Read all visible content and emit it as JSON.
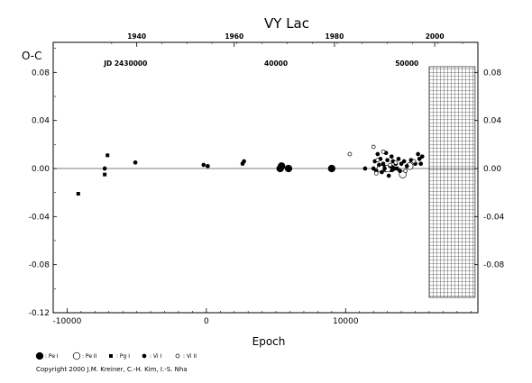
{
  "chart_data": {
    "type": "scatter",
    "title": "VY  Lac",
    "ylabel": "O-C",
    "xlabel": "Epoch",
    "xlim": [
      -11000,
      19500
    ],
    "ylim": [
      -0.12,
      0.105
    ],
    "y_ticks": [
      "0.08",
      "0.04",
      "0.00",
      "-0.04",
      "-0.08",
      "-0.12"
    ],
    "y_ticks_right": [
      "0.08",
      "0.04",
      "0.00",
      "-0.04",
      "-0.08"
    ],
    "x_ticks": [
      "-10000",
      "0",
      "10000"
    ],
    "top_axis": {
      "years": [
        "1940",
        "1960",
        "1980",
        "2000"
      ],
      "jd_labels": [
        "JD 2430000",
        "40000",
        "50000"
      ]
    },
    "grid": false,
    "hatched_region": [
      16000,
      19300
    ],
    "series": [
      {
        "name": ": Pe I",
        "marker": "filled-circle-large",
        "points": [
          [
            5300,
            0.0
          ],
          [
            5400,
            0.002
          ],
          [
            5900,
            0.0
          ],
          [
            9000,
            0.0
          ],
          [
            12900,
            0.0
          ],
          [
            13300,
            0.0
          ]
        ]
      },
      {
        "name": ": Pe II",
        "marker": "open-circle-large",
        "points": [
          [
            12500,
            0.0
          ],
          [
            13000,
            0.0
          ],
          [
            14100,
            -0.005
          ],
          [
            14600,
            0.002
          ]
        ]
      },
      {
        "name": ": Pg I",
        "marker": "filled-square",
        "points": [
          [
            -9200,
            -0.021
          ],
          [
            -7300,
            -0.005
          ],
          [
            -7100,
            0.011
          ]
        ]
      },
      {
        "name": ": Vi I",
        "marker": "filled-circle-small",
        "points": [
          [
            -7300,
            0.0
          ],
          [
            -5100,
            0.005
          ],
          [
            -200,
            0.003
          ],
          [
            100,
            0.002
          ],
          [
            2600,
            0.004
          ],
          [
            2700,
            0.006
          ],
          [
            11400,
            0.0
          ],
          [
            12000,
            0.0
          ],
          [
            12100,
            0.006
          ],
          [
            12200,
            -0.002
          ],
          [
            12300,
            0.012
          ],
          [
            12400,
            0.003
          ],
          [
            12500,
            0.008
          ],
          [
            12600,
            -0.003
          ],
          [
            12700,
            0.004
          ],
          [
            12800,
            0.0
          ],
          [
            12900,
            0.013
          ],
          [
            13000,
            0.007
          ],
          [
            13100,
            -0.006
          ],
          [
            13200,
            0.002
          ],
          [
            13300,
            0.01
          ],
          [
            13400,
            0.006
          ],
          [
            13500,
            0.0
          ],
          [
            13600,
            0.004
          ],
          [
            13700,
            0.0
          ],
          [
            13800,
            0.008
          ],
          [
            13900,
            -0.002
          ],
          [
            14000,
            0.004
          ],
          [
            14200,
            0.006
          ],
          [
            14400,
            0.002
          ],
          [
            14700,
            0.007
          ],
          [
            15000,
            0.004
          ],
          [
            15200,
            0.012
          ],
          [
            15300,
            0.008
          ],
          [
            15400,
            0.004
          ],
          [
            15500,
            0.01
          ]
        ]
      },
      {
        "name": ": Vi II",
        "marker": "open-circle-small",
        "points": [
          [
            10300,
            0.012
          ],
          [
            12000,
            0.018
          ],
          [
            12200,
            -0.004
          ],
          [
            12300,
            0.007
          ],
          [
            12700,
            0.014
          ],
          [
            13200,
            0.003
          ],
          [
            13600,
            0.005
          ],
          [
            14300,
            -0.002
          ],
          [
            14900,
            0.006
          ]
        ]
      }
    ]
  },
  "copyright": "Copyright 2000 J.M. Kreiner, C.-H. Kim, I.-S. Nha"
}
